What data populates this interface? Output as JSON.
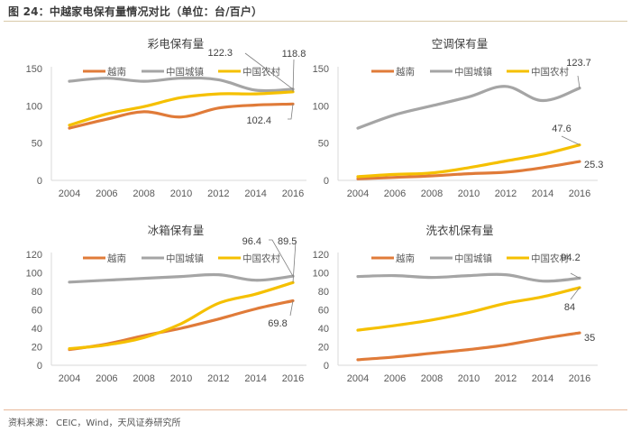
{
  "figure": {
    "title": "图 24：中越家电保有量情况对比（单位：台/百户）",
    "source": "资料来源： CEIC，Wind，天风证券研究所"
  },
  "colors": {
    "vietnam": "#E07B39",
    "china_urban": "#A5A5A5",
    "china_rural": "#F5C000",
    "axis": "#D9D9D9"
  },
  "chart_data": [
    {
      "type": "line",
      "title": "彩电保有量",
      "x": [
        "2004",
        "2006",
        "2008",
        "2010",
        "2012",
        "2014",
        "2016"
      ],
      "ylim": [
        0,
        150
      ],
      "yticks": [
        0,
        50,
        100,
        150
      ],
      "xlabel": "",
      "ylabel": "",
      "legend": "top",
      "series": [
        {
          "name": "越南",
          "key": "vietnam",
          "values": [
            70,
            82,
            92,
            85,
            97,
            101,
            102.4
          ]
        },
        {
          "name": "中国城镇",
          "key": "china_urban",
          "values": [
            133,
            137,
            133,
            137,
            135,
            121,
            122.3
          ]
        },
        {
          "name": "中国农村",
          "key": "china_rural",
          "values": [
            74,
            89,
            99,
            111,
            116,
            116,
            118.8
          ]
        }
      ],
      "annotations": [
        {
          "text": "122.3",
          "series": "中国城镇",
          "x": "2016"
        },
        {
          "text": "118.8",
          "series": "中国农村",
          "x": "2016"
        },
        {
          "text": "102.4",
          "series": "越南",
          "x": "2016"
        }
      ]
    },
    {
      "type": "line",
      "title": "空调保有量",
      "x": [
        "2004",
        "2006",
        "2008",
        "2010",
        "2012",
        "2014",
        "2016"
      ],
      "ylim": [
        0,
        150
      ],
      "yticks": [
        0,
        50,
        100,
        150
      ],
      "xlabel": "",
      "ylabel": "",
      "legend": "top",
      "series": [
        {
          "name": "越南",
          "key": "vietnam",
          "values": [
            2,
            4,
            6,
            9,
            11,
            17,
            25.3
          ]
        },
        {
          "name": "中国城镇",
          "key": "china_urban",
          "values": [
            70,
            88,
            100,
            112,
            126,
            107,
            123.7
          ]
        },
        {
          "name": "中国农村",
          "key": "china_rural",
          "values": [
            5,
            8,
            10,
            17,
            26,
            35,
            47.6
          ]
        }
      ],
      "annotations": [
        {
          "text": "123.7",
          "series": "中国城镇",
          "x": "2016"
        },
        {
          "text": "47.6",
          "series": "中国农村",
          "x": "2016"
        },
        {
          "text": "25.3",
          "series": "越南",
          "x": "2016"
        }
      ]
    },
    {
      "type": "line",
      "title": "冰箱保有量",
      "x": [
        "2004",
        "2006",
        "2008",
        "2010",
        "2012",
        "2014",
        "2016"
      ],
      "ylim": [
        0,
        120
      ],
      "yticks": [
        0,
        20,
        40,
        60,
        80,
        100,
        120
      ],
      "xlabel": "",
      "ylabel": "",
      "legend": "top",
      "series": [
        {
          "name": "越南",
          "key": "vietnam",
          "values": [
            17,
            23,
            32,
            40,
            50,
            61,
            69.8
          ]
        },
        {
          "name": "中国城镇",
          "key": "china_urban",
          "values": [
            90,
            92,
            94,
            96,
            98,
            92,
            96.4
          ]
        },
        {
          "name": "中国农村",
          "key": "china_rural",
          "values": [
            18,
            22,
            30,
            45,
            67,
            77,
            89.5
          ]
        }
      ],
      "annotations": [
        {
          "text": "96.4",
          "series": "中国城镇",
          "x": "2016"
        },
        {
          "text": "89.5",
          "series": "中国农村",
          "x": "2016"
        },
        {
          "text": "69.8",
          "series": "越南",
          "x": "2016"
        }
      ]
    },
    {
      "type": "line",
      "title": "洗衣机保有量",
      "x": [
        "2004",
        "2006",
        "2008",
        "2010",
        "2012",
        "2014",
        "2016"
      ],
      "ylim": [
        0,
        120
      ],
      "yticks": [
        0,
        20,
        40,
        60,
        80,
        100,
        120
      ],
      "xlabel": "",
      "ylabel": "",
      "legend": "top",
      "series": [
        {
          "name": "越南",
          "key": "vietnam",
          "values": [
            6,
            9,
            13,
            17,
            22,
            29,
            35
          ]
        },
        {
          "name": "中国城镇",
          "key": "china_urban",
          "values": [
            96,
            97,
            95,
            97,
            98,
            91,
            94.2
          ]
        },
        {
          "name": "中国农村",
          "key": "china_rural",
          "values": [
            38,
            43,
            49,
            57,
            67,
            74,
            84
          ]
        }
      ],
      "annotations": [
        {
          "text": "94.2",
          "series": "中国城镇",
          "x": "2016"
        },
        {
          "text": "84",
          "series": "中国农村",
          "x": "2016"
        },
        {
          "text": "35",
          "series": "越南",
          "x": "2016"
        }
      ]
    }
  ]
}
